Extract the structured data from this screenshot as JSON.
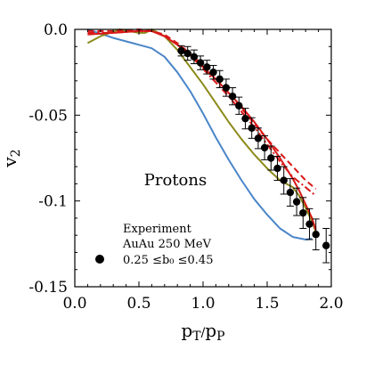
{
  "chart_data": {
    "type": "line",
    "xlabel": "p_T/p_P",
    "ylabel": "v_2",
    "xlim": [
      0.0,
      2.0
    ],
    "ylim": [
      -0.15,
      0.0
    ],
    "xticks": [
      0.0,
      0.5,
      1.0,
      1.5,
      2.0
    ],
    "xtick_labels": [
      "0.0",
      "0.5",
      "1.0",
      "1.5",
      "2.0"
    ],
    "yticks": [
      0.0,
      -0.05,
      -0.1,
      -0.15
    ],
    "ytick_labels": [
      "0.0",
      "-0.05",
      "-0.1",
      "-0.15"
    ],
    "grid": false,
    "annotation": "Protons",
    "legend": {
      "position": "bottom-left",
      "lines": [
        "Experiment",
        "AuAu 250 MeV",
        "0.25 ≤b₀ ≤0.45"
      ]
    },
    "experiment": {
      "color": "#000000",
      "x": [
        0.83,
        0.88,
        0.93,
        0.98,
        1.03,
        1.08,
        1.13,
        1.18,
        1.23,
        1.28,
        1.33,
        1.38,
        1.43,
        1.48,
        1.53,
        1.58,
        1.63,
        1.68,
        1.73,
        1.78,
        1.83,
        1.88,
        1.96
      ],
      "y": [
        -0.0125,
        -0.014,
        -0.016,
        -0.0195,
        -0.022,
        -0.025,
        -0.029,
        -0.034,
        -0.039,
        -0.0445,
        -0.052,
        -0.0575,
        -0.0635,
        -0.069,
        -0.075,
        -0.081,
        -0.088,
        -0.095,
        -0.1005,
        -0.107,
        -0.1135,
        -0.1195,
        -0.126
      ],
      "err": [
        0.003,
        0.004,
        0.004,
        0.004,
        0.004,
        0.004,
        0.005,
        0.005,
        0.005,
        0.005,
        0.006,
        0.006,
        0.006,
        0.007,
        0.007,
        0.007,
        0.008,
        0.008,
        0.008,
        0.009,
        0.009,
        0.009,
        0.01
      ]
    },
    "series": [
      {
        "color": "#4a86c8",
        "dash": "solid",
        "x": [
          0.1,
          0.3,
          0.45,
          0.5,
          0.6,
          0.7,
          0.8,
          0.9,
          1.0,
          1.1,
          1.2,
          1.3,
          1.4,
          1.5,
          1.6,
          1.7,
          1.8,
          1.85
        ],
        "y": [
          0.0,
          -0.005,
          -0.008,
          -0.009,
          -0.011,
          -0.016,
          -0.025,
          -0.036,
          -0.049,
          -0.063,
          -0.076,
          -0.088,
          -0.099,
          -0.108,
          -0.116,
          -0.121,
          -0.1225,
          -0.122
        ]
      },
      {
        "color": "#8c8a1a",
        "dash": "solid",
        "x": [
          0.1,
          0.2,
          0.35,
          0.5,
          0.55,
          0.6,
          0.7,
          0.8,
          0.9,
          1.0,
          1.1,
          1.2,
          1.3,
          1.4,
          1.5,
          1.6,
          1.65,
          1.7,
          1.75,
          1.8,
          1.85,
          1.88
        ],
        "y": [
          -0.008,
          -0.004,
          0.0,
          -0.002,
          -0.002,
          0.0,
          -0.004,
          -0.012,
          -0.022,
          -0.032,
          -0.043,
          -0.054,
          -0.064,
          -0.073,
          -0.081,
          -0.088,
          -0.09,
          -0.092,
          -0.097,
          -0.104,
          -0.112,
          -0.118
        ]
      },
      {
        "color": "#d81818",
        "dash": "solid",
        "x": [
          0.1,
          0.3,
          0.5,
          0.6,
          0.7,
          0.8,
          0.9,
          1.0,
          1.1,
          1.2,
          1.3,
          1.4,
          1.5,
          1.6,
          1.7,
          1.75,
          1.8,
          1.85,
          1.88
        ],
        "y": [
          -0.003,
          -0.002,
          -0.001,
          -0.001,
          -0.004,
          -0.009,
          -0.015,
          -0.022,
          -0.029,
          -0.037,
          -0.045,
          -0.054,
          -0.064,
          -0.075,
          -0.087,
          -0.094,
          -0.102,
          -0.11,
          -0.117
        ]
      },
      {
        "color": "#d81818",
        "dash": "dashed",
        "x": [
          0.1,
          0.3,
          0.5,
          0.6,
          0.7,
          0.8,
          0.9,
          1.0,
          1.1,
          1.2,
          1.3,
          1.4,
          1.5,
          1.6,
          1.7,
          1.8,
          1.88
        ],
        "y": [
          -0.001,
          -0.001,
          0.0,
          -0.001,
          -0.003,
          -0.008,
          -0.014,
          -0.021,
          -0.029,
          -0.037,
          -0.046,
          -0.055,
          -0.064,
          -0.072,
          -0.08,
          -0.088,
          -0.093
        ]
      },
      {
        "color": "#d81818",
        "dash": "dashdot",
        "x": [
          0.1,
          0.3,
          0.5,
          0.6,
          0.7,
          0.8,
          0.9,
          1.0,
          1.1,
          1.2,
          1.3,
          1.4,
          1.5,
          1.6,
          1.7,
          1.8,
          1.88
        ],
        "y": [
          -0.002,
          -0.002,
          -0.001,
          -0.001,
          -0.004,
          -0.009,
          -0.015,
          -0.023,
          -0.031,
          -0.039,
          -0.048,
          -0.057,
          -0.067,
          -0.077,
          -0.086,
          -0.092,
          -0.097
        ]
      }
    ]
  }
}
